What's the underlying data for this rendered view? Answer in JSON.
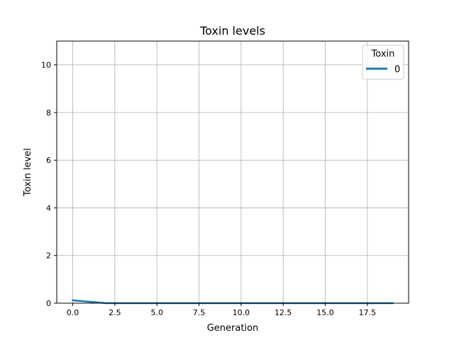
{
  "chart_data": {
    "type": "line",
    "title": "Toxin levels",
    "xlabel": "Generation",
    "ylabel": "Toxin level",
    "xlim": [
      -0.95,
      19.95
    ],
    "ylim": [
      0,
      11
    ],
    "xticks": [
      0,
      2.5,
      5,
      7.5,
      10,
      12.5,
      15,
      17.5
    ],
    "xtick_labels": [
      "0.0",
      "2.5",
      "5.0",
      "7.5",
      "10.0",
      "12.5",
      "15.0",
      "17.5"
    ],
    "yticks": [
      0,
      2,
      4,
      6,
      8,
      10
    ],
    "ytick_labels": [
      "0",
      "2",
      "4",
      "6",
      "8",
      "10"
    ],
    "grid": true,
    "legend": {
      "title": "Toxin",
      "placement": "top-right"
    },
    "series": [
      {
        "name": "0",
        "color": "#1f77b4",
        "x": [
          0,
          1,
          2,
          3,
          4,
          5,
          6,
          7,
          8,
          9,
          10,
          11,
          12,
          13,
          14,
          15,
          16,
          17,
          18,
          19
        ],
        "values": [
          0.12,
          0.06,
          0,
          0,
          0,
          0,
          0,
          0,
          0,
          0,
          0,
          0,
          0,
          0,
          0,
          0,
          0,
          0,
          0,
          0
        ]
      }
    ]
  }
}
